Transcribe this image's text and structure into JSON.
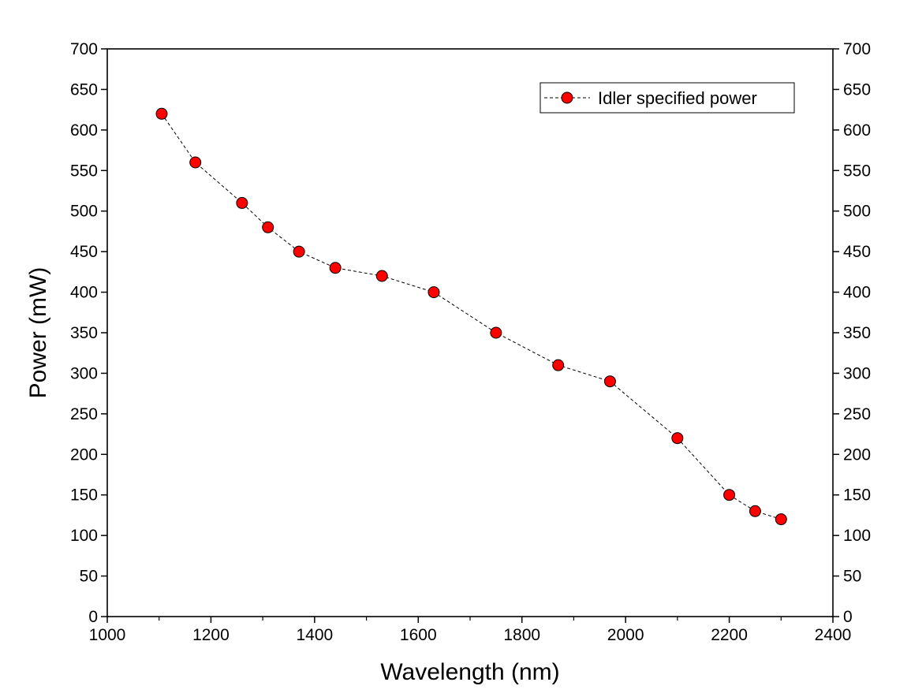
{
  "chart_data": {
    "type": "line",
    "title": "",
    "xlabel": "Wavelength (nm)",
    "ylabel": "Power (mW)",
    "xlim": [
      1000,
      2400
    ],
    "ylim": [
      0,
      700
    ],
    "xticks": [
      1000,
      1200,
      1400,
      1600,
      1800,
      2000,
      2200,
      2400
    ],
    "yticks": [
      0,
      50,
      100,
      150,
      200,
      250,
      300,
      350,
      400,
      450,
      500,
      550,
      600,
      650,
      700
    ],
    "right_axis_mirrored": true,
    "grid": false,
    "legend_position": "top-right",
    "series": [
      {
        "name": "Idler specified power",
        "marker": "circle",
        "line_style": "dashed",
        "color": "#ff0000",
        "x": [
          1105,
          1170,
          1260,
          1310,
          1370,
          1440,
          1530,
          1630,
          1750,
          1870,
          1970,
          2100,
          2200,
          2250,
          2300
        ],
        "y": [
          620,
          560,
          510,
          480,
          450,
          430,
          420,
          400,
          350,
          310,
          290,
          220,
          150,
          130,
          120
        ]
      }
    ]
  }
}
